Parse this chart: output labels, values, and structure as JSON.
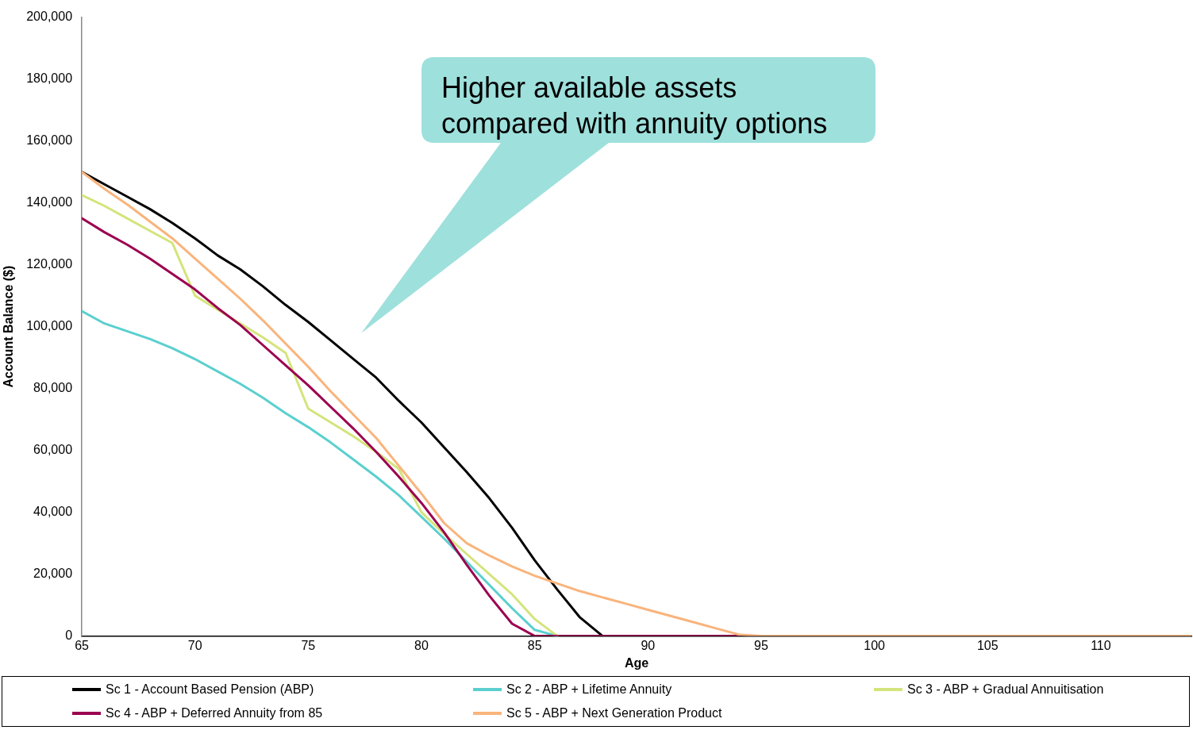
{
  "chart_data": {
    "type": "line",
    "xlabel": "Age",
    "ylabel": "Account Balance ($)",
    "x": [
      65,
      66,
      67,
      68,
      69,
      70,
      71,
      72,
      73,
      74,
      75,
      76,
      77,
      78,
      79,
      80,
      81,
      82,
      83,
      84,
      85,
      86,
      87,
      88,
      89,
      90,
      91,
      92,
      93,
      94,
      95,
      96,
      97,
      98,
      99,
      100,
      101,
      102,
      103,
      104,
      105,
      106,
      107,
      108,
      109,
      110,
      111,
      112,
      113,
      114
    ],
    "series": [
      {
        "name": "Sc 1 - Account Based Pension (ABP)",
        "color": "#000000",
        "values": [
          150000,
          146000,
          142000,
          138000,
          133500,
          128500,
          123000,
          118500,
          113000,
          107000,
          101500,
          95500,
          89500,
          83500,
          76000,
          69000,
          61000,
          53000,
          44500,
          35000,
          24500,
          15000,
          6000,
          0,
          null,
          null,
          null,
          null,
          null,
          null,
          null,
          null,
          null,
          null,
          null,
          null,
          null,
          null,
          null,
          null,
          null,
          null,
          null,
          null,
          null,
          null,
          null,
          null,
          null,
          null
        ]
      },
      {
        "name": "Sc 2 - ABP + Lifetime Annuity",
        "color": "#5bcfcf",
        "values": [
          105000,
          101000,
          98500,
          96000,
          93000,
          89500,
          85500,
          81500,
          77000,
          72000,
          67500,
          62500,
          57000,
          51500,
          45500,
          38500,
          31500,
          24000,
          16500,
          9000,
          2000,
          0,
          null,
          null,
          null,
          null,
          null,
          null,
          null,
          null,
          null,
          null,
          null,
          null,
          null,
          null,
          null,
          null,
          null,
          null,
          null,
          null,
          null,
          null,
          null,
          null,
          null,
          null,
          null,
          null
        ]
      },
      {
        "name": "Sc 3 - ABP + Gradual Annuitisation",
        "color": "#d4e47c",
        "values": [
          142500,
          139000,
          135000,
          131000,
          127000,
          110000,
          105500,
          101000,
          96500,
          91500,
          73500,
          69000,
          64500,
          59500,
          54000,
          40000,
          33000,
          26500,
          20000,
          13500,
          5500,
          0,
          null,
          null,
          null,
          null,
          null,
          null,
          null,
          null,
          null,
          null,
          null,
          null,
          null,
          null,
          null,
          null,
          null,
          null,
          null,
          null,
          null,
          null,
          null,
          null,
          null,
          null,
          null,
          null
        ]
      },
      {
        "name": "Sc 4 - ABP + Deferred Annuity from 85",
        "color": "#9b0050",
        "values": [
          135000,
          130500,
          126500,
          122000,
          117000,
          112000,
          106000,
          100500,
          94000,
          87500,
          81000,
          74000,
          67000,
          59500,
          51500,
          43000,
          33500,
          23000,
          13000,
          4000,
          0,
          0,
          0,
          0,
          0,
          0,
          0,
          0,
          0,
          0,
          null,
          null,
          null,
          null,
          null,
          null,
          null,
          null,
          null,
          null,
          null,
          null,
          null,
          null,
          null,
          null,
          null,
          null,
          null,
          null
        ]
      },
      {
        "name": "Sc 5 - ABP + Next Generation Product",
        "color": "#f9b47c",
        "values": [
          150000,
          144500,
          139500,
          134000,
          128500,
          122000,
          115500,
          109000,
          102000,
          94500,
          87000,
          79000,
          71500,
          64000,
          55000,
          46000,
          36500,
          30000,
          26000,
          22500,
          19500,
          17000,
          14500,
          12500,
          10500,
          8500,
          6500,
          4500,
          2500,
          500,
          0,
          0,
          0,
          0,
          0,
          0,
          0,
          0,
          0,
          0,
          0,
          0,
          0,
          0,
          0,
          0,
          0,
          0,
          0,
          0
        ]
      }
    ],
    "xlim": [
      65,
      114
    ],
    "xticks": [
      65,
      70,
      75,
      80,
      85,
      90,
      95,
      100,
      105,
      110
    ],
    "ylim": [
      0,
      200000
    ],
    "yticks": [
      {
        "value": 0,
        "label": "0"
      },
      {
        "value": 20000,
        "label": "20,000"
      },
      {
        "value": 40000,
        "label": "40,000"
      },
      {
        "value": 60000,
        "label": "60,000"
      },
      {
        "value": 80000,
        "label": "80,000"
      },
      {
        "value": 100000,
        "label": "100,000"
      },
      {
        "value": 120000,
        "label": "120,000"
      },
      {
        "value": 140000,
        "label": "140,000"
      },
      {
        "value": 160000,
        "label": "160,000"
      },
      {
        "value": 180000,
        "label": "180,000"
      },
      {
        "value": 200000,
        "label": "200,000"
      }
    ],
    "annotations": [
      "Higher available assets compared with annuity options"
    ],
    "grid": false,
    "legend": "bottom",
    "marker": "none",
    "line_style": "solid"
  }
}
